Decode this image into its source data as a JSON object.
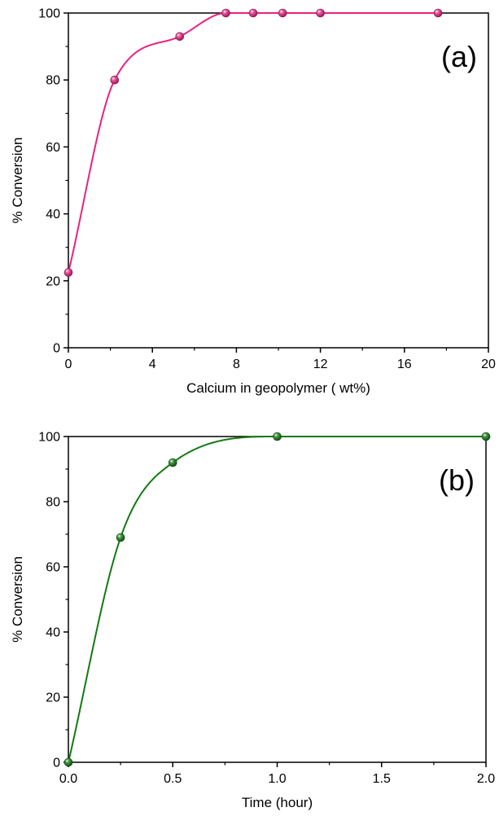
{
  "chart_data": [
    {
      "type": "scatter",
      "panel_label": "(a)",
      "xlabel": "Calcium in geopolymer ( wt%)",
      "ylabel": "% Conversion",
      "xlim": [
        0,
        20
      ],
      "ylim": [
        0,
        100
      ],
      "xticks": [
        0,
        4,
        8,
        12,
        16,
        20
      ],
      "yticks": [
        0,
        20,
        40,
        60,
        80,
        100
      ],
      "grid": false,
      "fit_curve": true,
      "color": "#e8237f",
      "series": [
        {
          "x": [
            0,
            2.2,
            5.3,
            7.5,
            8.8,
            10.2,
            12.0,
            17.6
          ],
          "y": [
            22.5,
            80.0,
            93.0,
            100,
            100,
            100,
            100,
            100
          ]
        }
      ]
    },
    {
      "type": "scatter",
      "panel_label": "(b)",
      "xlabel": "Time (hour)",
      "ylabel": "% Conversion",
      "xlim": [
        0,
        2.0
      ],
      "ylim": [
        0,
        100
      ],
      "xticks": [
        "0.0",
        "0.5",
        "1.0",
        "1.5",
        "2.0"
      ],
      "yticks": [
        0,
        20,
        40,
        60,
        80,
        100
      ],
      "grid": false,
      "fit_curve": true,
      "color": "#137a13",
      "series": [
        {
          "x": [
            0,
            0.25,
            0.5,
            1.0,
            2.0
          ],
          "y": [
            0,
            69,
            92,
            100,
            100
          ]
        }
      ]
    }
  ]
}
